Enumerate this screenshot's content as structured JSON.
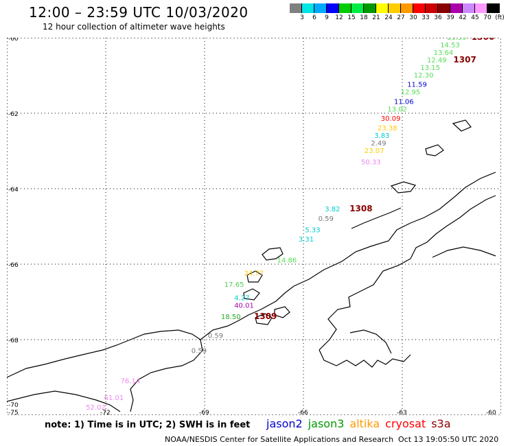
{
  "header": {
    "title": "12:00 – 23:59 UTC 10/03/2020",
    "subtitle": "12 hour collection of altimeter wave heights"
  },
  "colorbar": {
    "colors": [
      "#808080",
      "#00e5e5",
      "#00aaff",
      "#0000ff",
      "#00cc00",
      "#00ee44",
      "#009900",
      "#ffff00",
      "#ffcc00",
      "#ff9900",
      "#ff0000",
      "#cc0000",
      "#880000",
      "#aa00aa",
      "#cc88ff",
      "#ff99ff",
      "#000000"
    ],
    "labels": [
      "3",
      "6",
      "9",
      "12",
      "15",
      "18",
      "21",
      "24",
      "27",
      "30",
      "33",
      "36",
      "39",
      "42",
      "45",
      "70",
      "(ft)"
    ]
  },
  "axes": {
    "y_ticks": [
      "-60",
      "-62",
      "-64",
      "-66",
      "-68",
      "-70"
    ],
    "x_ticks": [
      "-75",
      "-72",
      "-69",
      "-66",
      "-63",
      "-60"
    ]
  },
  "observations": [
    {
      "text": "13.59",
      "lon": -61.65,
      "lat": -60.05,
      "color": "#55dd55"
    },
    {
      "text": "14.53",
      "lon": -61.85,
      "lat": -60.25,
      "color": "#55dd55"
    },
    {
      "text": "13.64",
      "lon": -62.05,
      "lat": -60.45,
      "color": "#55dd55"
    },
    {
      "text": "12.49",
      "lon": -62.25,
      "lat": -60.65,
      "color": "#55dd55"
    },
    {
      "text": "13.15",
      "lon": -62.45,
      "lat": -60.85,
      "color": "#55dd55"
    },
    {
      "text": "12.30",
      "lon": -62.65,
      "lat": -61.05,
      "color": "#55dd55"
    },
    {
      "text": "11.59",
      "lon": -62.85,
      "lat": -61.3,
      "color": "#0000cc"
    },
    {
      "text": "12.95",
      "lon": -63.05,
      "lat": -61.5,
      "color": "#55dd55"
    },
    {
      "text": "11.06",
      "lon": -63.25,
      "lat": -61.75,
      "color": "#0000cc"
    },
    {
      "text": "13.02",
      "lon": -63.45,
      "lat": -61.95,
      "color": "#55dd55"
    },
    {
      "text": "30.09",
      "lon": -63.65,
      "lat": -62.2,
      "color": "#ff0000"
    },
    {
      "text": "23.38",
      "lon": -63.75,
      "lat": -62.45,
      "color": "#ffcc00"
    },
    {
      "text": "3.83",
      "lon": -63.85,
      "lat": -62.65,
      "color": "#00cccc"
    },
    {
      "text": "2.49",
      "lon": -63.95,
      "lat": -62.85,
      "color": "#777777"
    },
    {
      "text": "23.07",
      "lon": -64.15,
      "lat": -63.05,
      "color": "#ffcc00"
    },
    {
      "text": "50.33",
      "lon": -64.25,
      "lat": -63.35,
      "color": "#ee88ee"
    },
    {
      "text": "3.82",
      "lon": -65.35,
      "lat": -64.6,
      "color": "#00cccc"
    },
    {
      "text": "0.59",
      "lon": -65.55,
      "lat": -64.85,
      "color": "#777777"
    },
    {
      "text": "5.33",
      "lon": -65.95,
      "lat": -65.15,
      "color": "#00cccc"
    },
    {
      "text": "3.31",
      "lon": -66.15,
      "lat": -65.4,
      "color": "#00cccc"
    },
    {
      "text": "14.86",
      "lon": -66.8,
      "lat": -65.95,
      "color": "#55dd55"
    },
    {
      "text": "24.77",
      "lon": -67.8,
      "lat": -66.3,
      "color": "#ffcc00"
    },
    {
      "text": "17.65",
      "lon": -68.4,
      "lat": -66.6,
      "color": "#55cc55"
    },
    {
      "text": "4.27",
      "lon": -68.1,
      "lat": -66.95,
      "color": "#00cccc"
    },
    {
      "text": "40.01",
      "lon": -68.1,
      "lat": -67.15,
      "color": "#aa00aa"
    },
    {
      "text": "18.50",
      "lon": -68.5,
      "lat": -67.45,
      "color": "#22aa22"
    },
    {
      "text": "0.59",
      "lon": -68.9,
      "lat": -67.95,
      "color": "#777777"
    },
    {
      "text": "0.59",
      "lon": -69.4,
      "lat": -68.35,
      "color": "#777777"
    },
    {
      "text": "76.14",
      "lon": -71.55,
      "lat": -69.15,
      "color": "#ee88ee"
    },
    {
      "text": "61.01",
      "lon": -72.05,
      "lat": -69.6,
      "color": "#ee88ee"
    },
    {
      "text": "52.02",
      "lon": -72.6,
      "lat": -69.85,
      "color": "#ee88ee"
    }
  ],
  "passes": [
    {
      "text": "1306",
      "lon": -60.9,
      "lat": -60.05,
      "color": "#880000"
    },
    {
      "text": "1307",
      "lon": -61.45,
      "lat": -60.65,
      "color": "#880000"
    },
    {
      "text": "1308",
      "lon": -64.6,
      "lat": -64.6,
      "color": "#880000"
    },
    {
      "text": "1309",
      "lon": -67.5,
      "lat": -67.45,
      "color": "#880000"
    }
  ],
  "footer": {
    "note": "note: 1) Time is in UTC; 2) SWH is in feet",
    "satellites": [
      {
        "name": "jason2",
        "color": "#0000cc"
      },
      {
        "name": "jason3",
        "color": "#009900"
      },
      {
        "name": "altika",
        "color": "#ff9900"
      },
      {
        "name": "cryosat",
        "color": "#ff0000"
      },
      {
        "name": "s3a",
        "color": "#880000"
      }
    ],
    "credit": "NOAA/NESDIS Center for Satellite Applications and Research",
    "timestamp": "Oct 13 19:05:50 UTC 2020"
  }
}
